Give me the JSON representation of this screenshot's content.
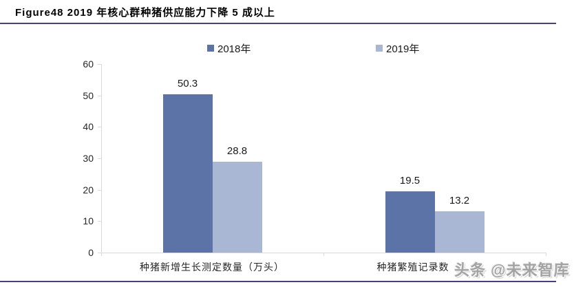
{
  "figure": {
    "title": "Figure48 2019 年核心群种猪供应能力下降 5 成以上",
    "watermark": "头条 @未来智库"
  },
  "colors": {
    "series_2018": "#5B73A6",
    "series_2019": "#A9B7D5",
    "rule": "#473D8F",
    "axis": "#D9D9D9",
    "watermark": "#a3a3a3"
  },
  "chart_data": {
    "type": "bar",
    "title": "Figure48 2019 年核心群种猪供应能力下降 5 成以上",
    "categories": [
      "种猪新增生长测定数量（万头）",
      "种猪繁殖记录数"
    ],
    "series": [
      {
        "name": "2018年",
        "color": "#5B73A6",
        "values": [
          50.3,
          19.5
        ]
      },
      {
        "name": "2019年",
        "color": "#A9B7D5",
        "values": [
          28.8,
          13.2
        ]
      }
    ],
    "xlabel": "",
    "ylabel": "",
    "ylim": [
      0,
      60
    ],
    "yticks": [
      0,
      10,
      20,
      30,
      40,
      50,
      60
    ],
    "grid": false,
    "legend_position": "top",
    "data_labels": true
  }
}
